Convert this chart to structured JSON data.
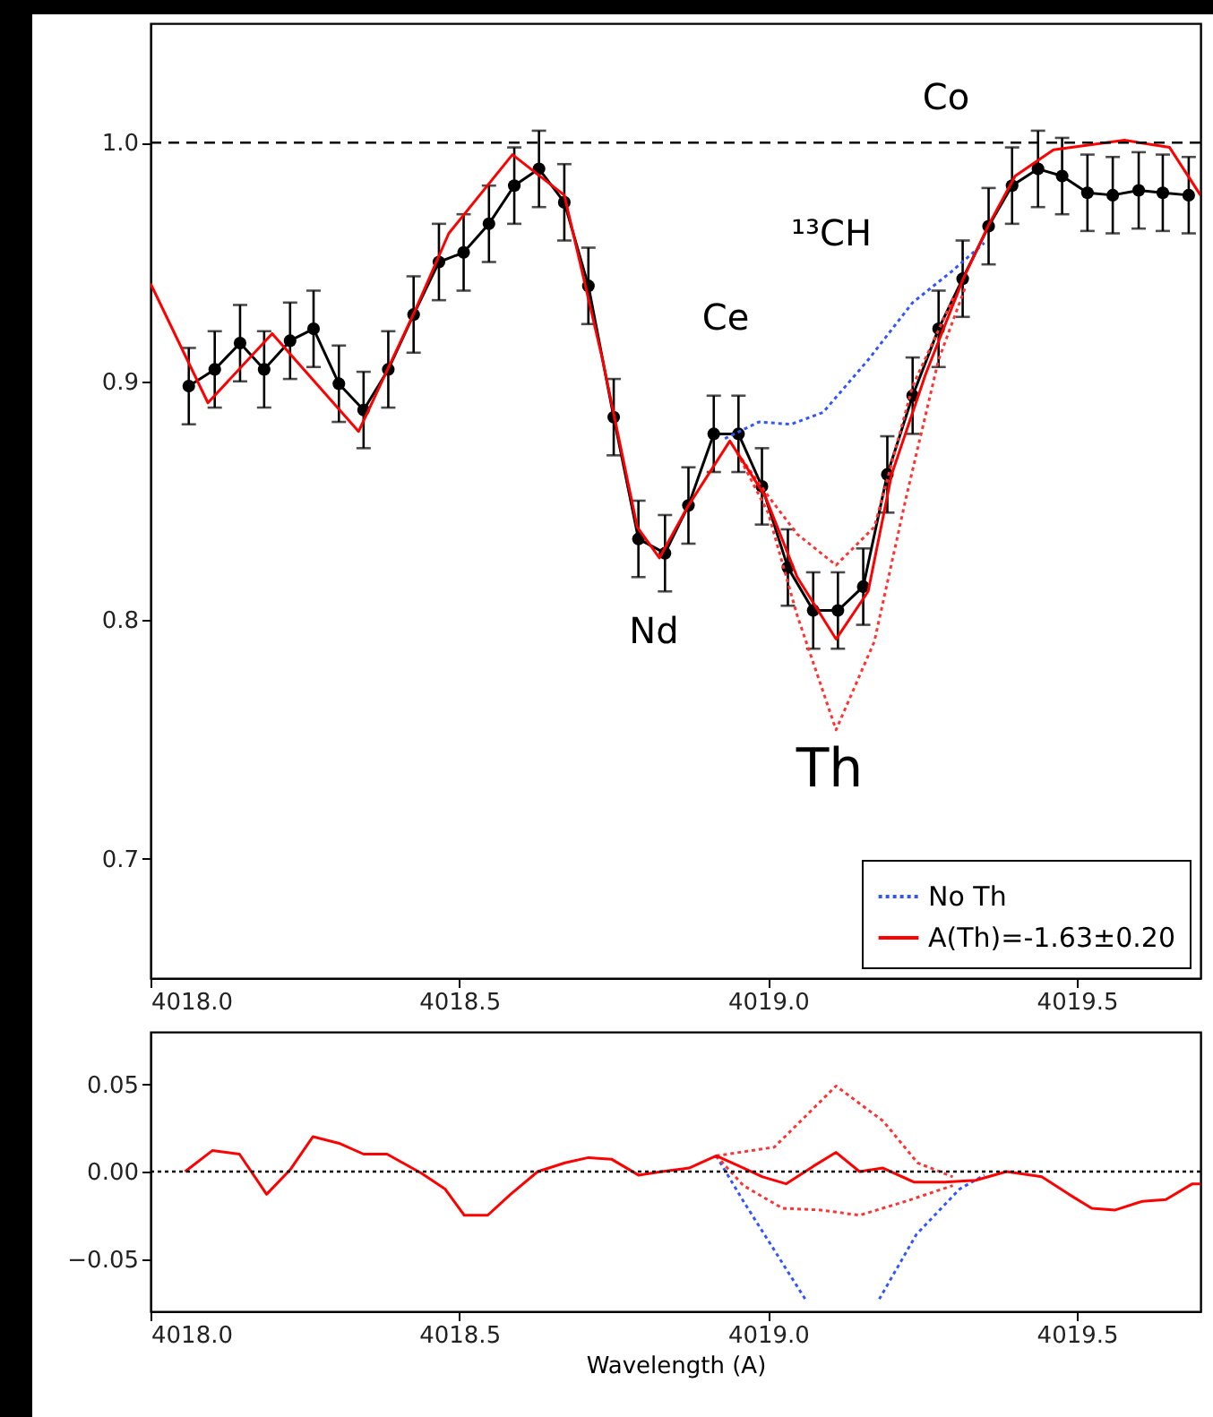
{
  "chart_data": [
    {
      "type": "line",
      "xlim": [
        4018.0,
        4019.7
      ],
      "ylim": [
        0.65,
        1.05
      ],
      "xticks": [
        {
          "value": 4018.0,
          "label": "4018.0"
        },
        {
          "value": 4018.5,
          "label": "4018.5"
        },
        {
          "value": 4019.0,
          "label": "4019.0"
        },
        {
          "value": 4019.5,
          "label": "4019.5"
        }
      ],
      "yticks": [
        {
          "value": 0.7,
          "label": "0.7"
        },
        {
          "value": 0.8,
          "label": "0.8"
        },
        {
          "value": 0.9,
          "label": "0.9"
        },
        {
          "value": 1.0,
          "label": "1.0"
        }
      ],
      "grid": false,
      "legend": "bottom right",
      "series": [
        {
          "color": "#000000",
          "marker": "circle",
          "line_style": "solid",
          "x": [
            4018.062,
            4018.104,
            4018.145,
            4018.184,
            4018.226,
            4018.264,
            4018.305,
            4018.345,
            4018.385,
            4018.426,
            4018.467,
            4018.507,
            4018.548,
            4018.589,
            4018.629,
            4018.67,
            4018.709,
            4018.75,
            4018.79,
            4018.833,
            4018.871,
            4018.912,
            4018.952,
            4018.99,
            4019.032,
            4019.073,
            4019.113,
            4019.154,
            4019.193,
            4019.234,
            4019.276,
            4019.315,
            4019.357,
            4019.395,
            4019.437,
            4019.476,
            4019.517,
            4019.558,
            4019.6,
            4019.639,
            4019.681
          ],
          "values": [
            0.898,
            0.905,
            0.916,
            0.905,
            0.917,
            0.922,
            0.899,
            0.888,
            0.905,
            0.928,
            0.95,
            0.954,
            0.966,
            0.982,
            0.989,
            0.975,
            0.94,
            0.885,
            0.834,
            0.828,
            0.848,
            0.878,
            0.878,
            0.856,
            0.822,
            0.804,
            0.804,
            0.814,
            0.861,
            0.894,
            0.922,
            0.943,
            0.965,
            0.982,
            0.989,
            0.986,
            0.979,
            0.978,
            0.98,
            0.979,
            0.978
          ],
          "errors": [
            0.016,
            0.016,
            0.016,
            0.016,
            0.016,
            0.016,
            0.016,
            0.016,
            0.016,
            0.016,
            0.016,
            0.016,
            0.016,
            0.016,
            0.016,
            0.016,
            0.016,
            0.016,
            0.016,
            0.016,
            0.016,
            0.016,
            0.016,
            0.016,
            0.016,
            0.016,
            0.016,
            0.016,
            0.016,
            0.016,
            0.016,
            0.016,
            0.016,
            0.016,
            0.016,
            0.016,
            0.016,
            0.016,
            0.016,
            0.016,
            0.016
          ]
        },
        {
          "name": "No Th",
          "color": "#3355ff",
          "marker": "none",
          "line_style": "dotted",
          "x": [
            4018.93,
            4018.985,
            4019.037,
            4019.089,
            4019.162,
            4019.234,
            4019.297,
            4019.35
          ],
          "values": [
            0.876,
            0.883,
            0.882,
            0.887,
            0.909,
            0.933,
            0.946,
            0.958
          ]
        },
        {
          "color": "#ff3333",
          "marker": "none",
          "line_style": "dotted",
          "x": [
            4018.95,
            4019.0,
            4019.047,
            4019.11,
            4019.172,
            4019.234,
            4019.3
          ],
          "values": [
            0.87,
            0.852,
            0.836,
            0.823,
            0.839,
            0.898,
            0.935
          ]
        },
        {
          "color": "#ff3333",
          "marker": "none",
          "line_style": "dotted",
          "x": [
            4018.95,
            4019.0,
            4019.047,
            4019.11,
            4019.172,
            4019.224,
            4019.276,
            4019.32
          ],
          "values": [
            0.87,
            0.845,
            0.802,
            0.754,
            0.791,
            0.852,
            0.909,
            0.94
          ]
        },
        {
          "name": "A(Th)=-1.63±0.20",
          "color": "#ff0000",
          "marker": "none",
          "line_style": "solid",
          "x": [
            4018.0,
            4018.093,
            4018.197,
            4018.337,
            4018.429,
            4018.483,
            4018.586,
            4018.67,
            4018.732,
            4018.788,
            4018.824,
            4018.871,
            4018.938,
            4018.995,
            4019.047,
            4019.11,
            4019.162,
            4019.2,
            4019.255,
            4019.316,
            4019.358,
            4019.4,
            4019.462,
            4019.577,
            4019.65,
            4019.7
          ],
          "values": [
            0.941,
            0.891,
            0.92,
            0.879,
            0.93,
            0.962,
            0.995,
            0.978,
            0.909,
            0.839,
            0.826,
            0.848,
            0.875,
            0.852,
            0.818,
            0.792,
            0.812,
            0.861,
            0.903,
            0.943,
            0.966,
            0.986,
            0.997,
            1.001,
            0.998,
            0.978
          ]
        }
      ],
      "ref_lines": [
        {
          "axis": "y",
          "value": 1.0,
          "color": "#000000",
          "line_style": "dashed"
        }
      ],
      "annotations": [
        "Co",
        "¹³CH",
        "Ce",
        "Nd",
        "Th"
      ]
    },
    {
      "type": "line",
      "xlabel": "Wavelength (A)",
      "xlim": [
        4018.0,
        4019.7
      ],
      "ylim": [
        -0.08,
        0.08
      ],
      "xticks": [
        {
          "value": 4018.0,
          "label": "4018.0"
        },
        {
          "value": 4018.5,
          "label": "4018.5"
        },
        {
          "value": 4019.0,
          "label": "4019.0"
        },
        {
          "value": 4019.5,
          "label": "4019.5"
        }
      ],
      "yticks": [
        {
          "value": -0.05,
          "label": "−0.05"
        },
        {
          "value": 0,
          "label": "0.00"
        },
        {
          "value": 0.05,
          "label": "0.05"
        }
      ],
      "grid": false,
      "legend": false,
      "series": [
        {
          "color": "#3355ff",
          "line_style": "dotted",
          "x": [
            4018.916,
            4018.96,
            4019.06,
            4019.11,
            4019.18,
            4019.24,
            4019.31,
            4019.35
          ],
          "values": [
            0.009,
            -0.017,
            -0.073,
            null,
            -0.073,
            -0.036,
            -0.01,
            -0.002
          ]
        },
        {
          "color": "#ff3333",
          "line_style": "dotted",
          "x": [
            4018.916,
            4019.01,
            4019.11,
            4019.186,
            4019.242,
            4019.299
          ],
          "values": [
            0.009,
            0.014,
            0.049,
            0.029,
            0.005,
            -0.003
          ]
        },
        {
          "color": "#ff3333",
          "line_style": "dotted",
          "x": [
            4018.916,
            4018.96,
            4019.023,
            4019.085,
            4019.148,
            4019.223,
            4019.299
          ],
          "values": [
            0.009,
            -0.008,
            -0.021,
            -0.022,
            -0.025,
            -0.017,
            -0.008
          ]
        },
        {
          "color": "#ff0000",
          "line_style": "solid",
          "x": [
            4018.056,
            4018.1,
            4018.144,
            4018.188,
            4018.226,
            4018.263,
            4018.307,
            4018.345,
            4018.383,
            4018.439,
            4018.477,
            4018.508,
            4018.546,
            4018.583,
            4018.627,
            4018.671,
            4018.709,
            4018.747,
            4018.79,
            4018.828,
            4018.872,
            4018.916,
            4018.954,
            4018.991,
            4019.029,
            4019.073,
            4019.11,
            4019.148,
            4019.186,
            4019.236,
            4019.286,
            4019.336,
            4019.386,
            4019.443,
            4019.487,
            4019.524,
            4019.562,
            4019.606,
            4019.644,
            4019.687,
            4019.7
          ],
          "values": [
            0,
            0.012,
            0.01,
            -0.013,
            0.001,
            0.02,
            0.016,
            0.01,
            0.01,
            -0.001,
            -0.01,
            -0.025,
            -0.025,
            -0.013,
            0,
            0.005,
            0.008,
            0.007,
            -0.002,
            0,
            0.002,
            0.009,
            0.003,
            -0.003,
            -0.007,
            0.003,
            0.011,
            0,
            0.002,
            -0.006,
            -0.006,
            -0.005,
            0,
            -0.003,
            -0.013,
            -0.021,
            -0.022,
            -0.017,
            -0.016,
            -0.007,
            -0.007
          ]
        }
      ],
      "ref_lines": [
        {
          "axis": "y",
          "value": 0,
          "color": "#000000",
          "line_style": "dotted"
        }
      ]
    }
  ]
}
